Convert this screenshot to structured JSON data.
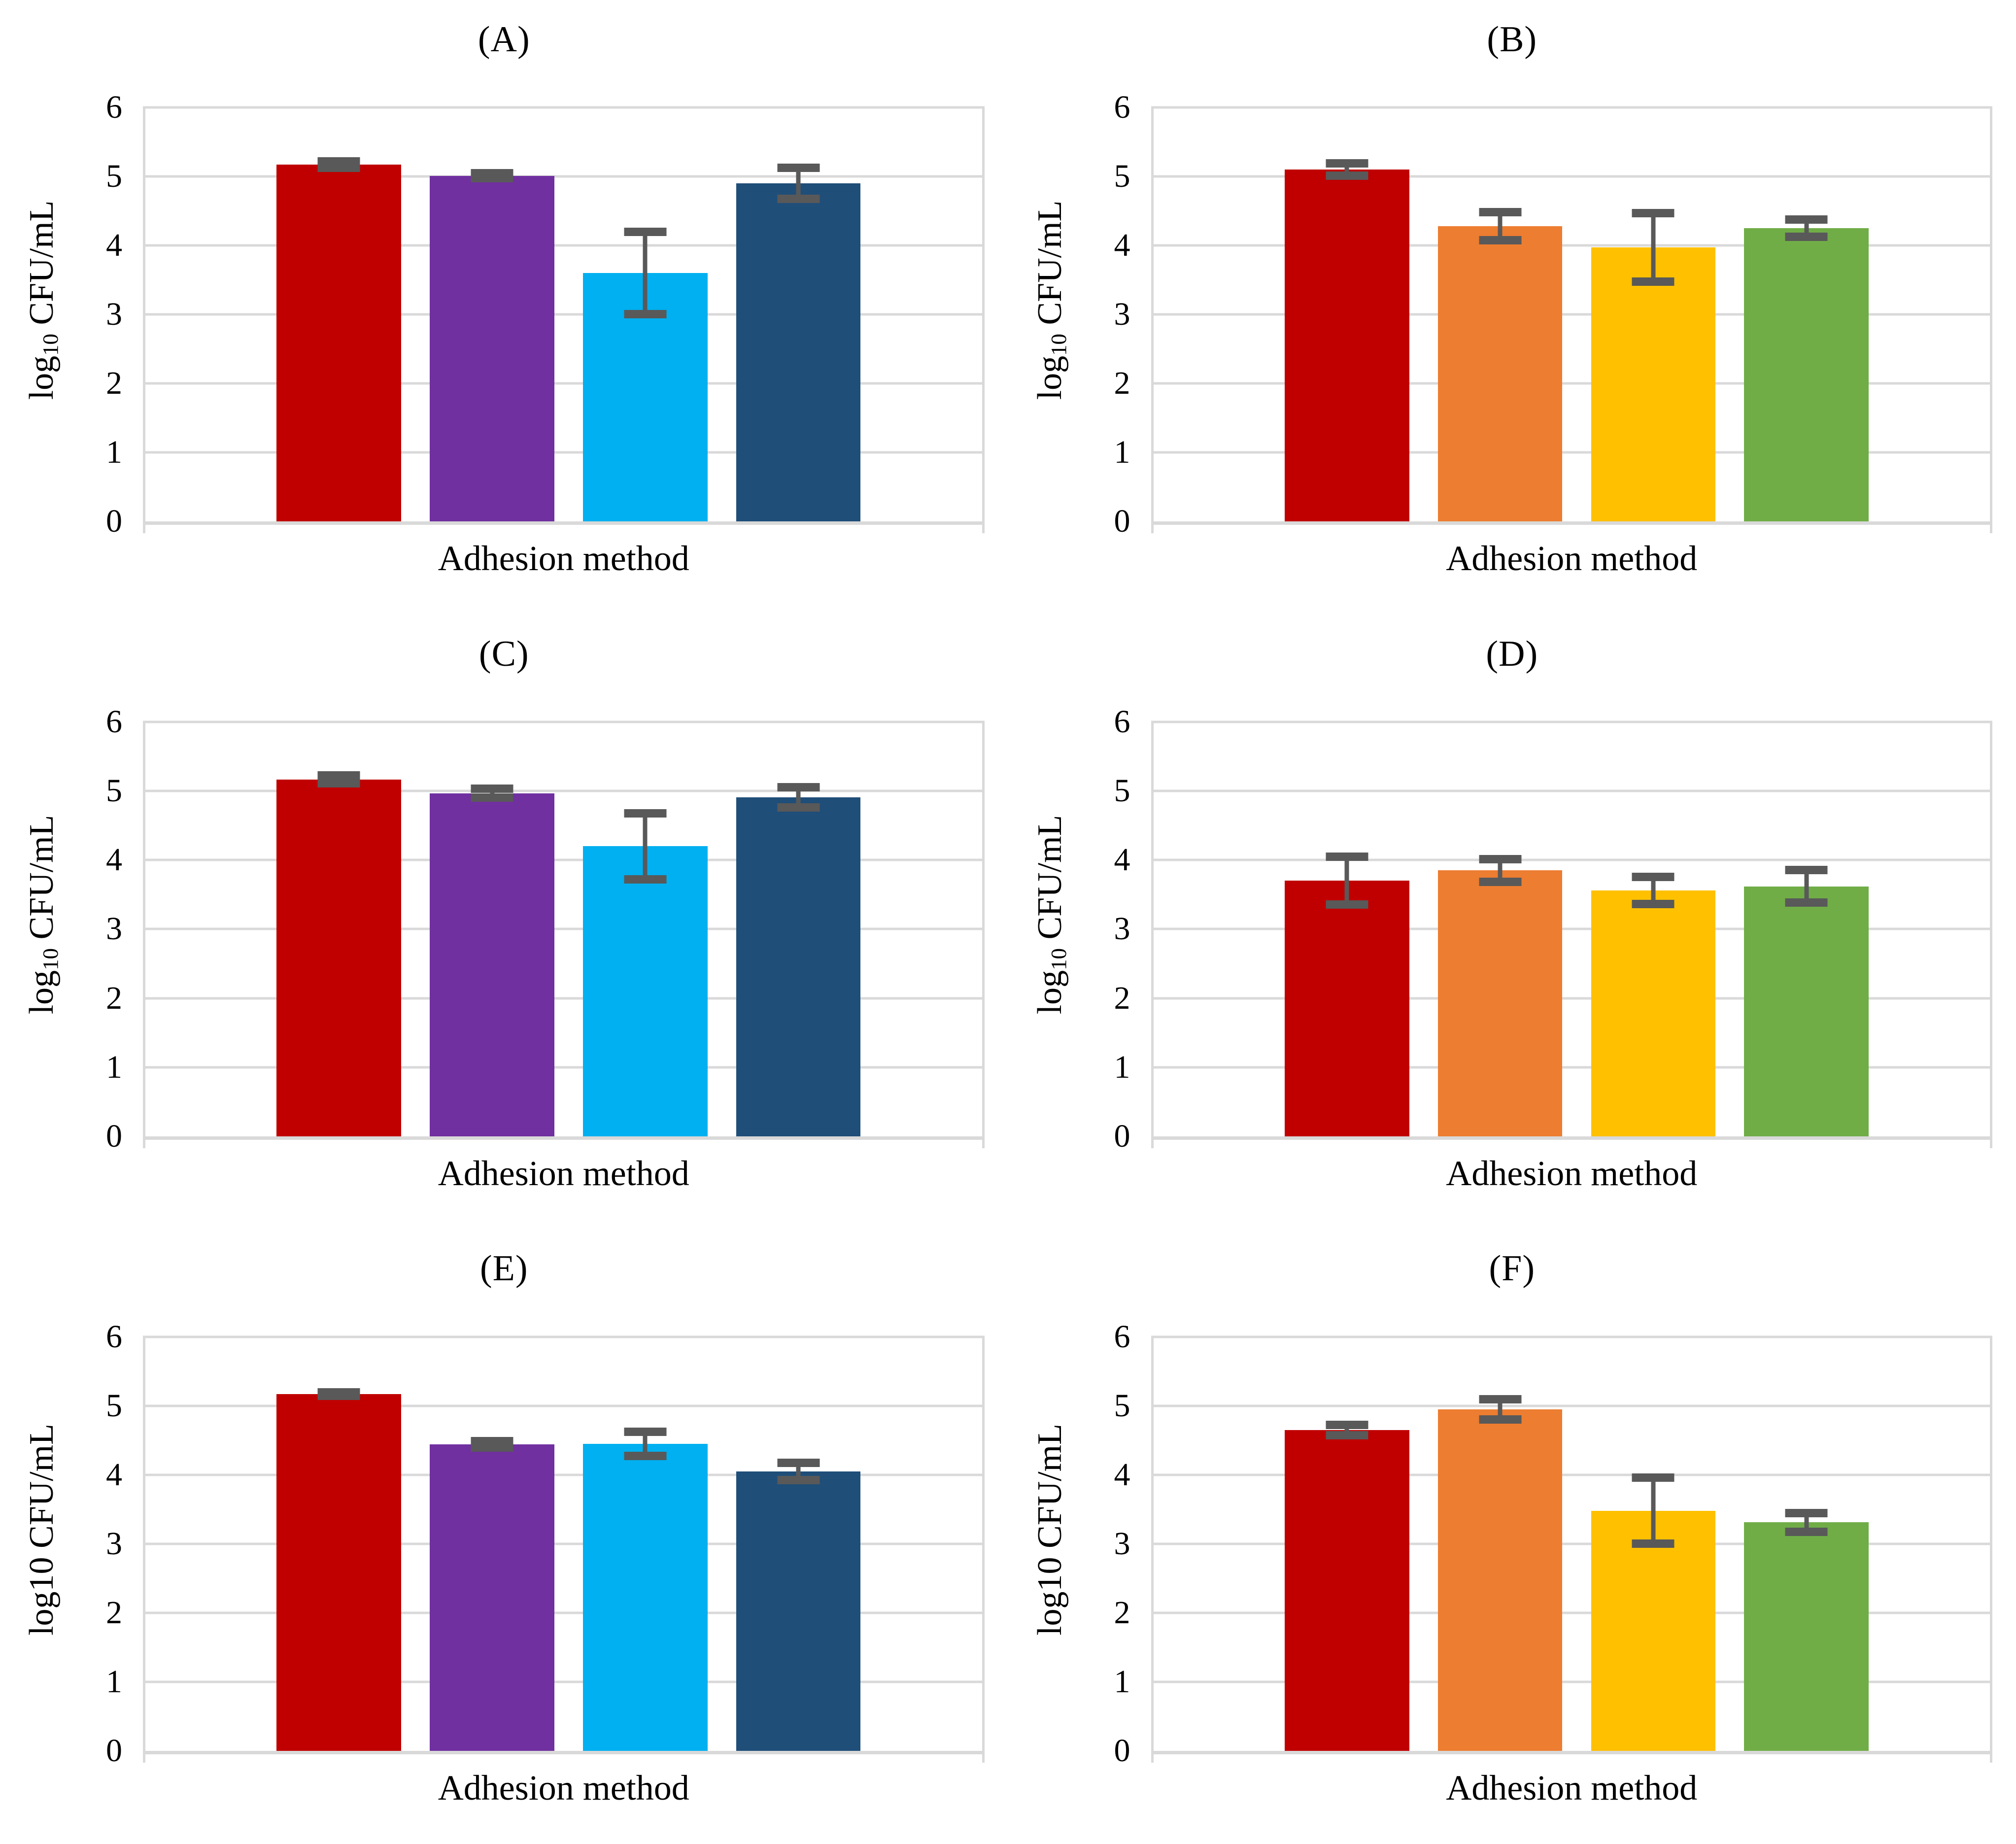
{
  "figure": {
    "background": "#FFFFFF"
  },
  "style": {
    "gridline_color": "#D9D9D9",
    "error_bar_color": "#595959",
    "text_color": "#000000"
  },
  "chart_data": [
    {
      "panel": "A",
      "title": "(A)",
      "type": "bar",
      "xlabel": "Adhesion method",
      "ylabel": "log10 CFU/mL",
      "ylabel_parts": {
        "prefix": "log",
        "sub": "10",
        "suffix": " CFU/mL"
      },
      "ylabel_subscript": true,
      "ylim": [
        0,
        6
      ],
      "yticks": [
        "0",
        "1",
        "2",
        "3",
        "4",
        "5",
        "6"
      ],
      "grid": true,
      "legend": false,
      "categories": [
        "Adhesion method"
      ],
      "series": [
        {
          "name": "dark-red",
          "color": "#C00000",
          "value": 5.17,
          "error": 0.05
        },
        {
          "name": "purple",
          "color": "#7030A0",
          "value": 5.01,
          "error": 0.04
        },
        {
          "name": "light-blue",
          "color": "#00B0F0",
          "value": 3.6,
          "error": 0.6
        },
        {
          "name": "dark-blue",
          "color": "#1F4E79",
          "value": 4.9,
          "error": 0.23
        }
      ]
    },
    {
      "panel": "B",
      "title": "(B)",
      "type": "bar",
      "xlabel": "Adhesion method",
      "ylabel": "log10 CFU/mL",
      "ylabel_parts": {
        "prefix": "log",
        "sub": "10",
        "suffix": " CFU/mL"
      },
      "ylabel_subscript": true,
      "ylim": [
        0,
        6
      ],
      "yticks": [
        "0",
        "1",
        "2",
        "3",
        "4",
        "5",
        "6"
      ],
      "grid": true,
      "legend": false,
      "categories": [
        "Adhesion method"
      ],
      "series": [
        {
          "name": "dark-red",
          "color": "#C00000",
          "value": 5.1,
          "error": 0.09
        },
        {
          "name": "orange",
          "color": "#ED7D31",
          "value": 4.28,
          "error": 0.21
        },
        {
          "name": "yellow",
          "color": "#FFC000",
          "value": 3.97,
          "error": 0.5
        },
        {
          "name": "green",
          "color": "#70AD47",
          "value": 4.25,
          "error": 0.13
        }
      ]
    },
    {
      "panel": "C",
      "title": "(C)",
      "type": "bar",
      "xlabel": "Adhesion method",
      "ylabel": "log10 CFU/mL",
      "ylabel_parts": {
        "prefix": "log",
        "sub": "10",
        "suffix": " CFU/mL"
      },
      "ylabel_subscript": true,
      "ylim": [
        0,
        6
      ],
      "yticks": [
        "0",
        "1",
        "2",
        "3",
        "4",
        "5",
        "6"
      ],
      "grid": true,
      "legend": false,
      "categories": [
        "Adhesion method"
      ],
      "series": [
        {
          "name": "dark-red",
          "color": "#C00000",
          "value": 5.17,
          "error": 0.06
        },
        {
          "name": "purple",
          "color": "#7030A0",
          "value": 4.97,
          "error": 0.07
        },
        {
          "name": "light-blue",
          "color": "#00B0F0",
          "value": 4.2,
          "error": 0.48
        },
        {
          "name": "dark-blue",
          "color": "#1F4E79",
          "value": 4.91,
          "error": 0.15
        }
      ]
    },
    {
      "panel": "D",
      "title": "(D)",
      "type": "bar",
      "xlabel": "Adhesion method",
      "ylabel": "log10 CFU/mL",
      "ylabel_parts": {
        "prefix": "log",
        "sub": "10",
        "suffix": " CFU/mL"
      },
      "ylabel_subscript": true,
      "ylim": [
        0,
        6
      ],
      "yticks": [
        "0",
        "1",
        "2",
        "3",
        "4",
        "5",
        "6"
      ],
      "grid": true,
      "legend": false,
      "categories": [
        "Adhesion method"
      ],
      "series": [
        {
          "name": "dark-red",
          "color": "#C00000",
          "value": 3.7,
          "error": 0.35
        },
        {
          "name": "orange",
          "color": "#ED7D31",
          "value": 3.85,
          "error": 0.17
        },
        {
          "name": "yellow",
          "color": "#FFC000",
          "value": 3.56,
          "error": 0.2
        },
        {
          "name": "green",
          "color": "#70AD47",
          "value": 3.62,
          "error": 0.24
        }
      ]
    },
    {
      "panel": "E",
      "title": "(E)",
      "type": "bar",
      "xlabel": "Adhesion method",
      "ylabel": "log10 CFU/mL",
      "ylabel_parts": {
        "prefix": "log",
        "sub": "10",
        "suffix": " CFU/mL"
      },
      "ylabel_subscript": false,
      "ylim": [
        0,
        6
      ],
      "yticks": [
        "0",
        "1",
        "2",
        "3",
        "4",
        "5",
        "6"
      ],
      "grid": true,
      "legend": false,
      "categories": [
        "Adhesion method"
      ],
      "series": [
        {
          "name": "dark-red",
          "color": "#C00000",
          "value": 5.17,
          "error": 0.03
        },
        {
          "name": "purple",
          "color": "#7030A0",
          "value": 4.44,
          "error": 0.05
        },
        {
          "name": "light-blue",
          "color": "#00B0F0",
          "value": 4.45,
          "error": 0.18
        },
        {
          "name": "dark-blue",
          "color": "#1F4E79",
          "value": 4.05,
          "error": 0.13
        }
      ]
    },
    {
      "panel": "F",
      "title": "(F)",
      "type": "bar",
      "xlabel": "Adhesion method",
      "ylabel": "log10 CFU/mL",
      "ylabel_parts": {
        "prefix": "log",
        "sub": "10",
        "suffix": " CFU/mL"
      },
      "ylabel_subscript": false,
      "ylim": [
        0,
        6
      ],
      "yticks": [
        "0",
        "1",
        "2",
        "3",
        "4",
        "5",
        "6"
      ],
      "grid": true,
      "legend": false,
      "categories": [
        "Adhesion method"
      ],
      "series": [
        {
          "name": "dark-red",
          "color": "#C00000",
          "value": 4.65,
          "error": 0.08
        },
        {
          "name": "orange",
          "color": "#ED7D31",
          "value": 4.95,
          "error": 0.15
        },
        {
          "name": "yellow",
          "color": "#FFC000",
          "value": 3.48,
          "error": 0.48
        },
        {
          "name": "green",
          "color": "#70AD47",
          "value": 3.31,
          "error": 0.14
        }
      ]
    }
  ]
}
